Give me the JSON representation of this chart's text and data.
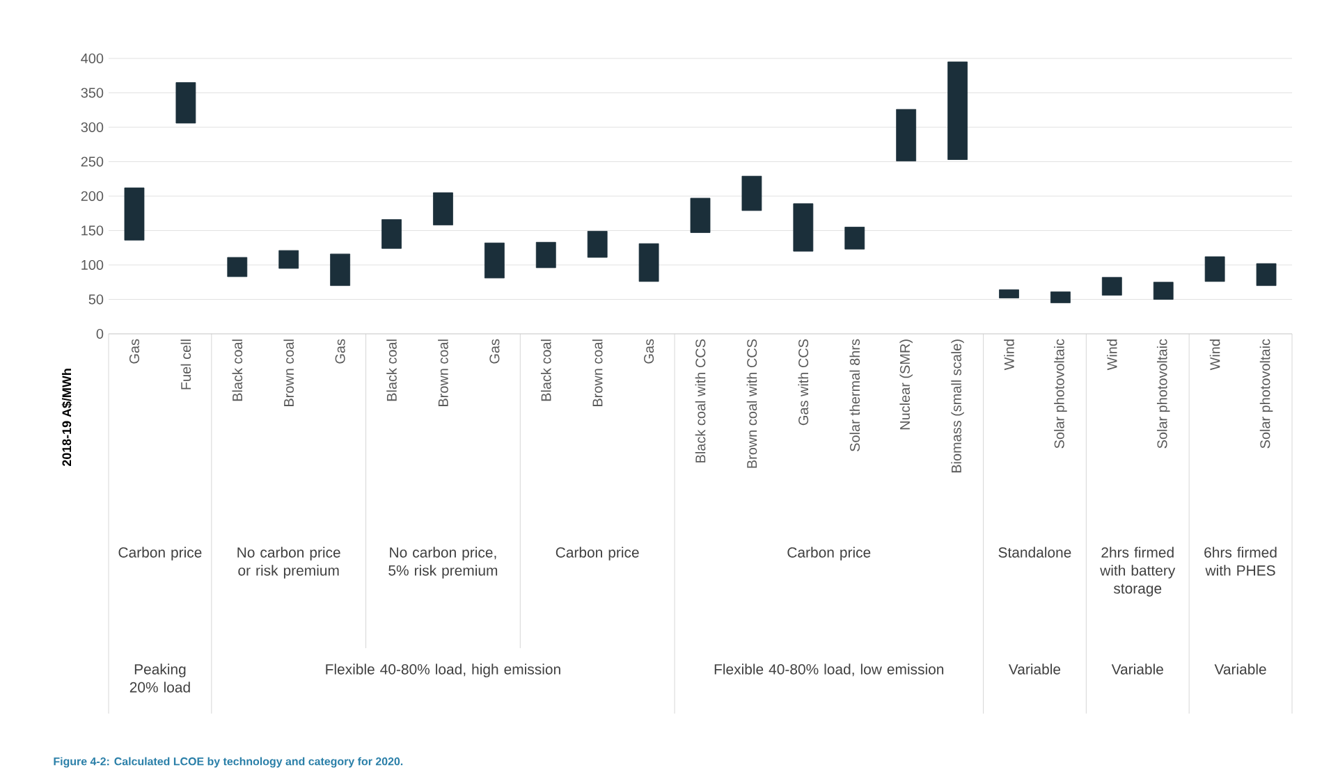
{
  "chart_data": {
    "type": "bar",
    "ylabel": "2018-19 A$/MWh",
    "categories": [
      "Gas",
      "Fuel cell",
      "Black coal",
      "Brown coal",
      "Gas",
      "Black coal",
      "Brown coal",
      "Gas",
      "Black coal",
      "Brown coal",
      "Gas",
      "Black coal with CCS",
      "Brown coal with CCS",
      "Gas with CCS",
      "Solar thermal 8hrs",
      "Nuclear (SMR)",
      "Biomass (small scale)",
      "Wind",
      "Solar photovoltaic",
      "Wind",
      "Solar photovoltaic",
      "Wind",
      "Solar photovoltaic"
    ],
    "base": [
      136,
      306,
      83,
      95,
      70,
      124,
      158,
      81,
      96,
      111,
      76,
      147,
      179,
      120,
      123,
      251,
      253,
      52,
      45,
      56,
      50,
      76,
      70
    ],
    "values": [
      76,
      59,
      28,
      26,
      46,
      42,
      47,
      51,
      37,
      38,
      55,
      50,
      50,
      69,
      32,
      75,
      142,
      12,
      16,
      26,
      25,
      36,
      32
    ],
    "color": "#1b2f3a",
    "ylim": [
      0,
      400
    ],
    "yticks": [
      0,
      50,
      100,
      150,
      200,
      250,
      300,
      350,
      400
    ],
    "grid": "y",
    "annotations": [
      "Carbon price",
      "No carbon price or risk premium",
      "No carbon price, 5% risk premium",
      "Carbon price",
      "Carbon price",
      "Standalone",
      "2hrs firmed with battery storage",
      "6hrs firmed with PHES",
      "Peaking 20% load",
      "Flexible 40-80% load, high emission",
      "Flexible 40-80% load, low emission",
      "Variable",
      "Variable",
      "Variable",
      "Figure 4-2: Calculated LCOE by technology and category for 2020."
    ]
  }
}
